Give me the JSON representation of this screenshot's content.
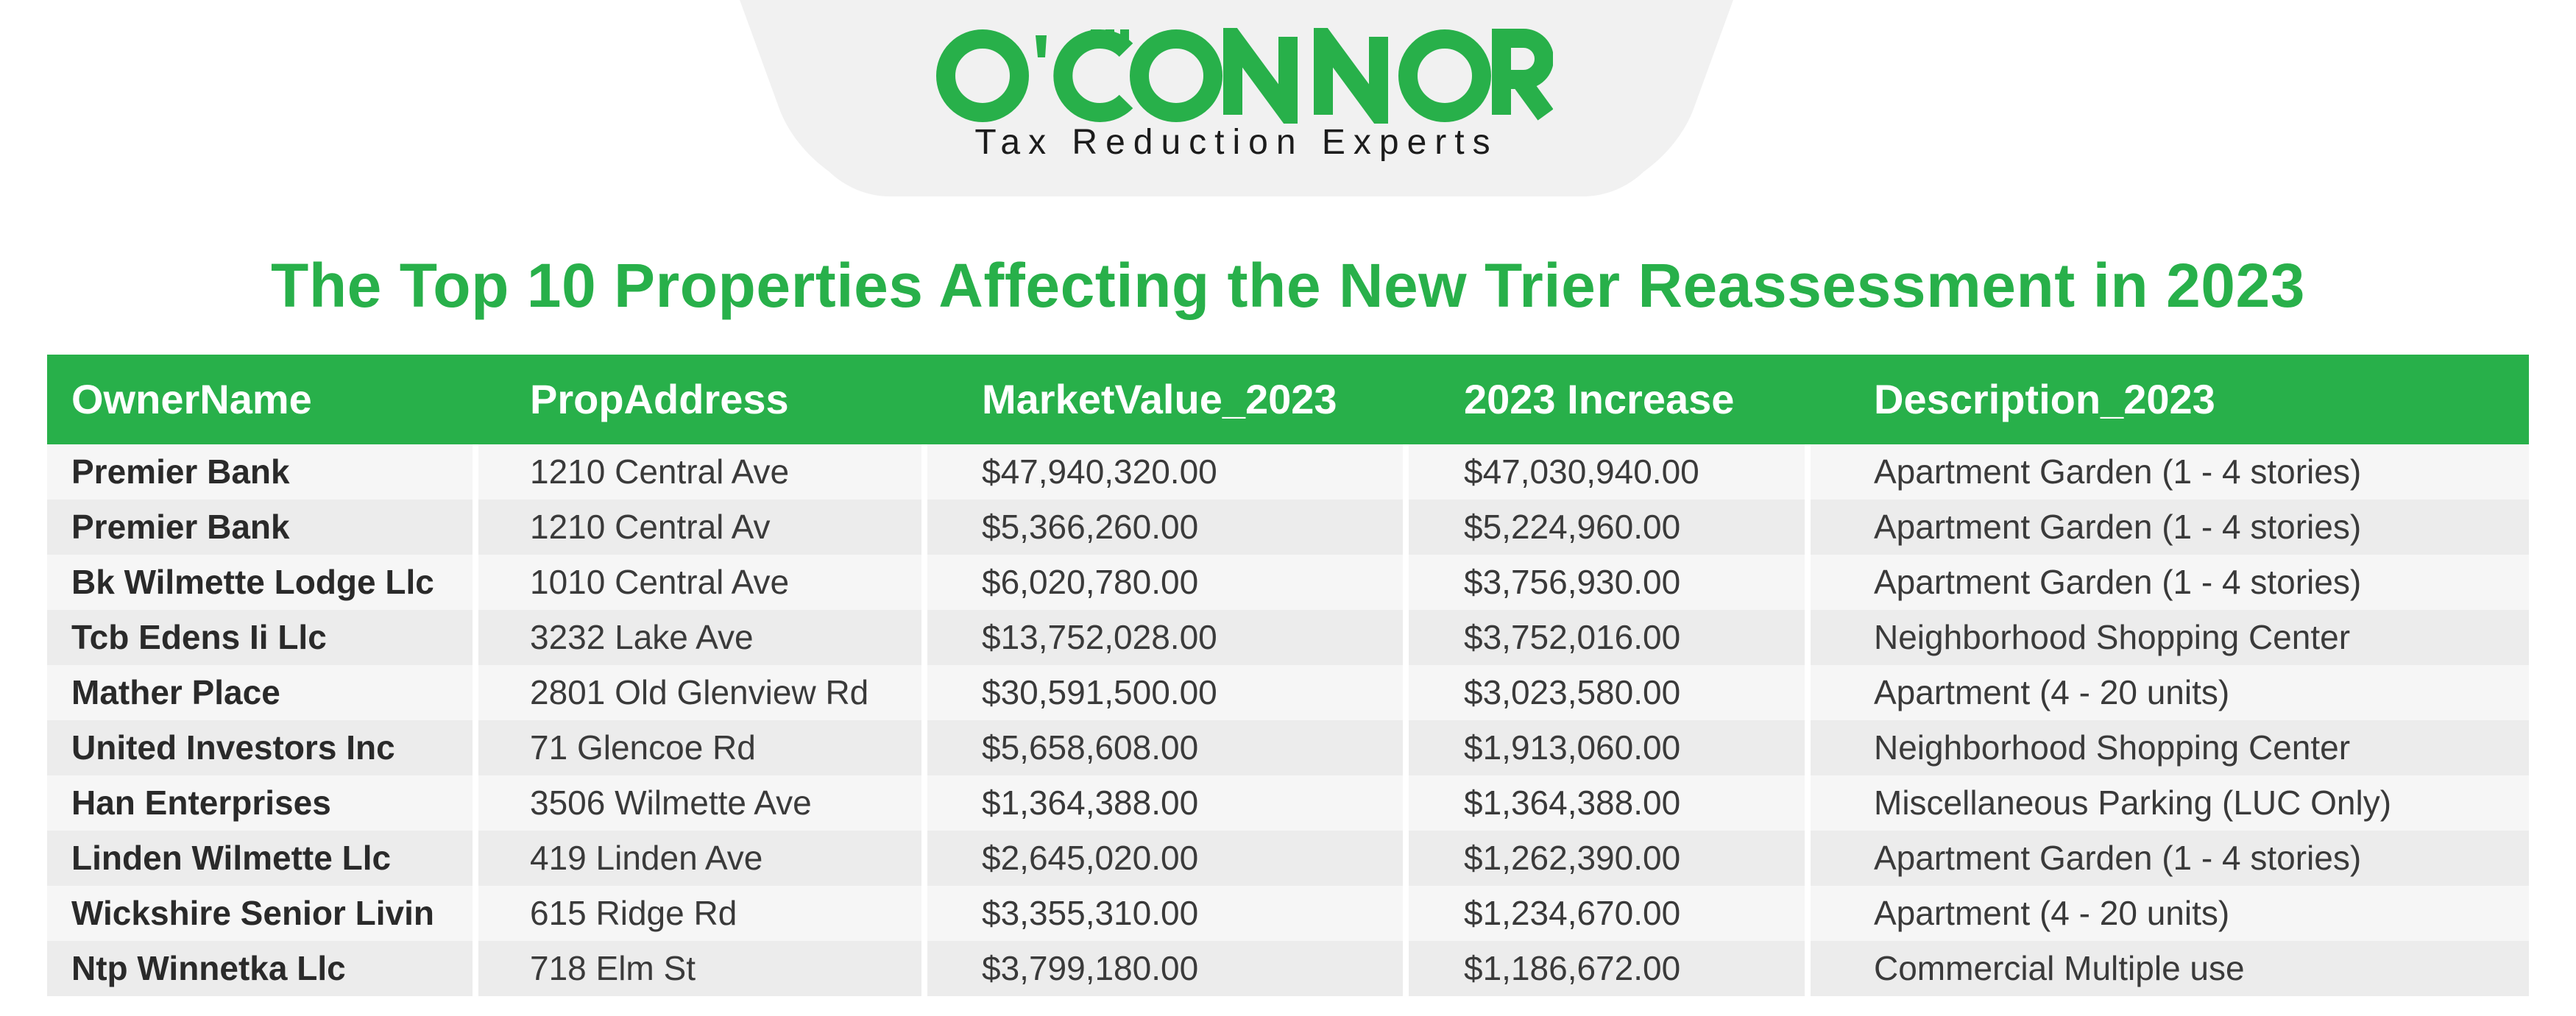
{
  "header": {
    "brand_name": "O'CONNOR",
    "tagline": "Tax Reduction Experts",
    "brand_color": "#28b04a"
  },
  "title": "The Top 10 Properties Affecting the New Trier Reassessment in 2023",
  "table": {
    "columns": [
      "OwnerName",
      "PropAddress",
      "MarketValue_2023",
      "2023 Increase",
      "Description_2023"
    ],
    "rows": [
      [
        "Premier Bank",
        "1210 Central Ave",
        "$47,940,320.00",
        "$47,030,940.00",
        "Apartment Garden (1 - 4 stories)"
      ],
      [
        "Premier Bank",
        "1210 Central Av",
        "$5,366,260.00",
        "$5,224,960.00",
        "Apartment Garden (1 - 4 stories)"
      ],
      [
        "Bk Wilmette Lodge Llc",
        "1010 Central Ave",
        "$6,020,780.00",
        "$3,756,930.00",
        "Apartment Garden (1 - 4 stories)"
      ],
      [
        "Tcb Edens Ii Llc",
        "3232 Lake Ave",
        "$13,752,028.00",
        "$3,752,016.00",
        "Neighborhood Shopping Center"
      ],
      [
        "Mather Place",
        "2801 Old Glenview Rd",
        "$30,591,500.00",
        "$3,023,580.00",
        "Apartment (4 - 20 units)"
      ],
      [
        "United Investors Inc",
        "71 Glencoe Rd",
        "$5,658,608.00",
        "$1,913,060.00",
        "Neighborhood Shopping Center"
      ],
      [
        "Han Enterprises",
        "3506 Wilmette Ave",
        "$1,364,388.00",
        "$1,364,388.00",
        "Miscellaneous Parking  (LUC Only)"
      ],
      [
        "Linden Wilmette Llc",
        "419 Linden Ave",
        "$2,645,020.00",
        "$1,262,390.00",
        "Apartment Garden (1 - 4 stories)"
      ],
      [
        "Wickshire Senior Livin",
        "615 Ridge Rd",
        "$3,355,310.00",
        "$1,234,670.00",
        "Apartment (4 - 20 units)"
      ],
      [
        "Ntp Winnetka Llc",
        "718 Elm St",
        "$3,799,180.00",
        "$1,186,672.00",
        "Commercial Multiple use"
      ]
    ]
  }
}
